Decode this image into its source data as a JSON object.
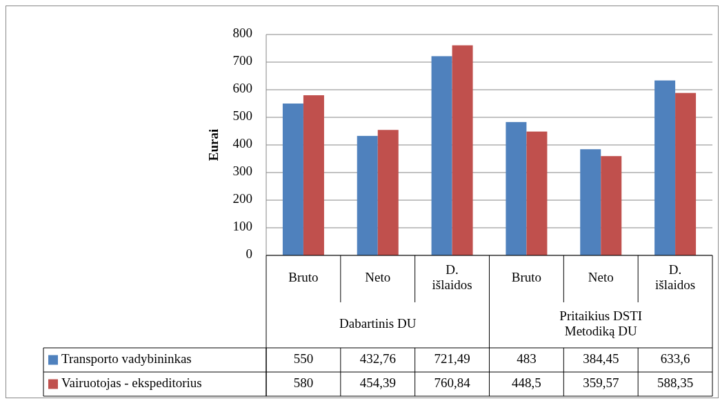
{
  "chart_data": {
    "type": "bar",
    "ylabel": "Eurai",
    "categories": [
      "Bruto",
      "Neto",
      "D. išlaidos",
      "Bruto",
      "Neto",
      "D. išlaidos"
    ],
    "annotations": [
      "Dabartinis DU",
      "Pritaikius DSTI Metodiką DU"
    ],
    "series": [
      {
        "name": "Transporto vadybininkas",
        "color": "#4f81bd",
        "values": [
          550,
          432.76,
          721.49,
          483,
          384.45,
          633.6
        ],
        "value_labels": [
          "550",
          "432,76",
          "721,49",
          "483",
          "384,45",
          "633,6"
        ]
      },
      {
        "name": "Vairuotojas - ekspeditorius",
        "color": "#c0504d",
        "values": [
          580,
          454.39,
          760.84,
          448.5,
          359.57,
          588.35
        ],
        "value_labels": [
          "580",
          "454,39",
          "760,84",
          "448,5",
          "359,57",
          "588,35"
        ]
      }
    ],
    "ylim": [
      0,
      800
    ],
    "yticks": [
      0,
      100,
      200,
      300,
      400,
      500,
      600,
      700,
      800
    ],
    "grid": "y",
    "legend": "bottom"
  }
}
